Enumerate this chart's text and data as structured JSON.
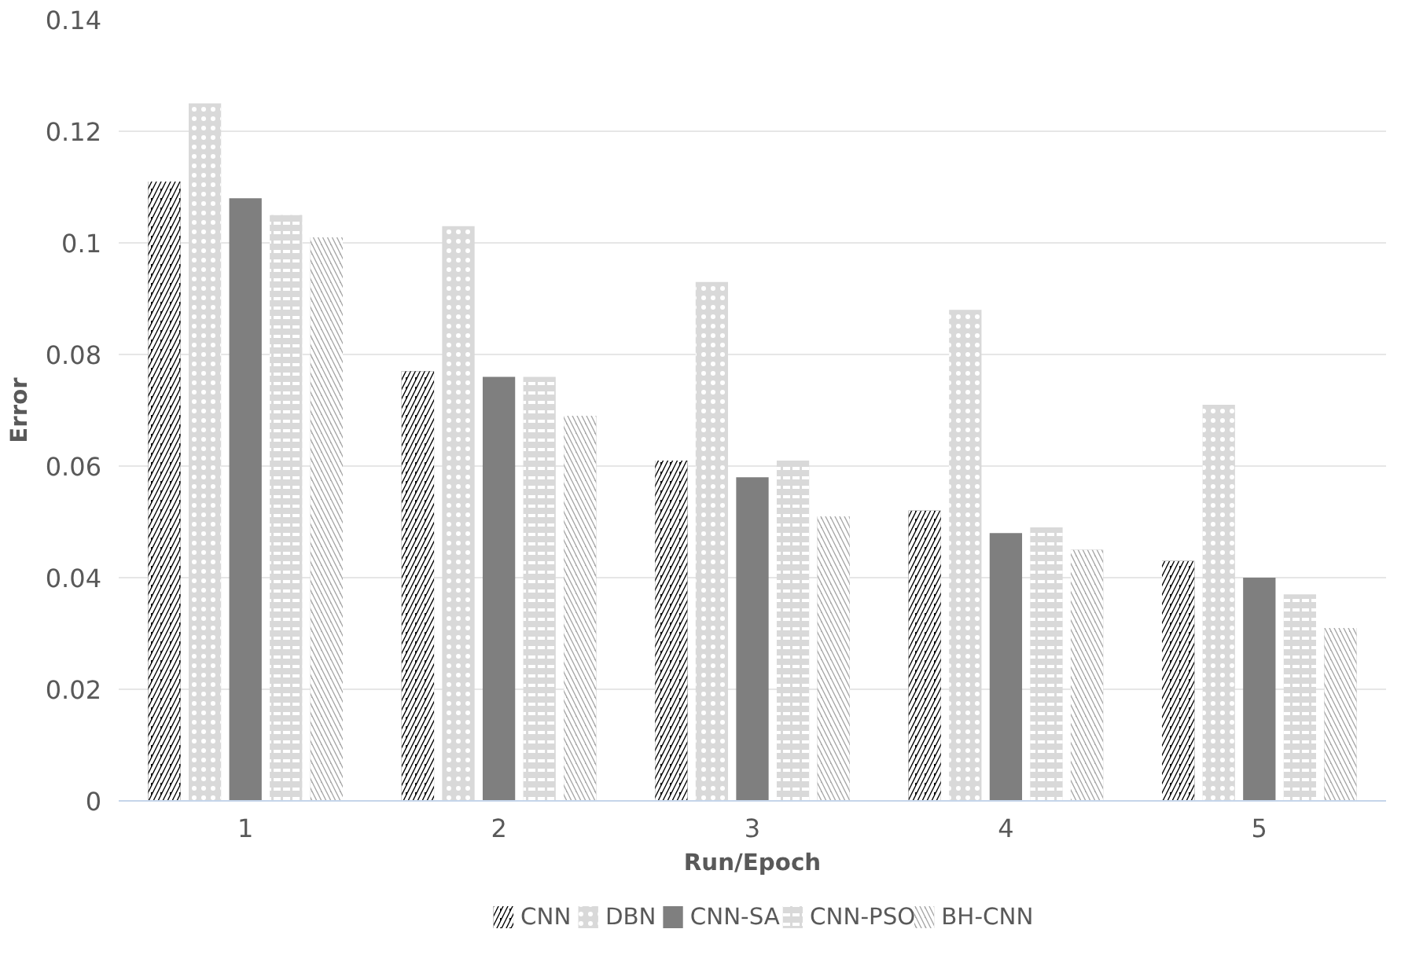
{
  "chart_data": {
    "type": "bar",
    "xlabel": "Run/Epoch",
    "ylabel": "Error",
    "categories": [
      "1",
      "2",
      "3",
      "4",
      "5"
    ],
    "series": [
      {
        "name": "CNN",
        "color": "#000000",
        "values": [
          0.111,
          0.077,
          0.061,
          0.052,
          0.043
        ]
      },
      {
        "name": "DBN",
        "color": "#d9d9d9",
        "values": [
          0.125,
          0.103,
          0.093,
          0.088,
          0.071
        ]
      },
      {
        "name": "CNN-SA",
        "color": "#7f7f7f",
        "values": [
          0.108,
          0.076,
          0.058,
          0.048,
          0.04
        ]
      },
      {
        "name": "CNN-PSO",
        "color": "#d9d9d9",
        "values": [
          0.105,
          0.076,
          0.061,
          0.049,
          0.037
        ]
      },
      {
        "name": "BH-CNN",
        "color": "#a6a6a6",
        "values": [
          0.101,
          0.069,
          0.051,
          0.045,
          0.031
        ]
      }
    ],
    "ylim": [
      0,
      0.14
    ],
    "yticks": [
      0,
      {
        "value": 0.02,
        "label": "0.02"
      },
      {
        "value": 0.04,
        "label": "0.04"
      },
      {
        "value": 0.06,
        "label": "0.06"
      },
      {
        "value": 0.08,
        "label": "0.08"
      },
      {
        "value": 0.1,
        "label": "0.1"
      },
      {
        "value": 0.12,
        "label": "0.12"
      },
      {
        "value": 0.14,
        "label": "0.14"
      }
    ],
    "grid": "y",
    "legend": "bottom"
  }
}
